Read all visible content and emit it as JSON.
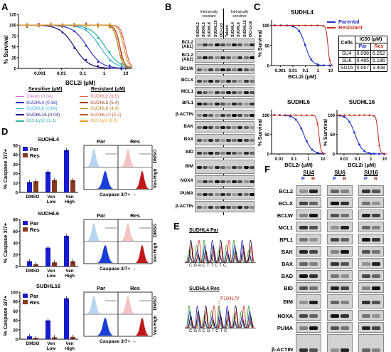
{
  "panel_labels": {
    "A": "A",
    "B": "B",
    "C": "C",
    "D": "D",
    "E": "E",
    "F": "F"
  },
  "panelA": {
    "ylabel": "% Survival",
    "xlabel": "BCL2i (μM)",
    "yticks": [
      "0",
      "25",
      "50",
      "75",
      "100",
      "125"
    ],
    "xticks": [
      "0.001",
      "0.01",
      "0.1",
      "1",
      "10"
    ],
    "legend_sens_title": "Sensitive (μM)",
    "legend_res_title": "Resistant (μM)",
    "sensitive": [
      {
        "name": "Toledo (0.04)",
        "color": "#d070d0"
      },
      {
        "name": "SUDHL4 (0.16)",
        "color": "#3030c0"
      },
      {
        "name": "SUDHL6 (0.64)",
        "color": "#40b0e0"
      },
      {
        "name": "SUDHL16 (0.04)",
        "color": "#1a1a80"
      },
      {
        "name": "OCI-Ly10 (1.1)",
        "color": "#30b0a0"
      }
    ],
    "resistant": [
      {
        "name": "SUDHL2 (9.5)",
        "color": "#e06060"
      },
      {
        "name": "SUDHL5 (5.4)",
        "color": "#a04020"
      },
      {
        "name": "SUDHL8 (4.4)",
        "color": "#b08020"
      },
      {
        "name": "SUDHL10 (5.2)",
        "color": "#c06030"
      },
      {
        "name": "OCI-Ly3 (8.0)",
        "color": "#e0a030"
      }
    ]
  },
  "panelB": {
    "group_left": "Intrinsically\nresistant",
    "group_right": "Intrinsically\nsensitive",
    "lanes": [
      "SUDHL2",
      "SUDHL5",
      "SUDHL8",
      "SUDHL10",
      "OCI-Ly3",
      "Toledo",
      "SUDHL4",
      "SUDHL6",
      "SUDHL16",
      "OCI-Ly10"
    ],
    "rows": [
      "BCL2\n(Ab1)",
      "BCL2\n(Ab2)",
      "BCLW",
      "BCLX",
      "MCL1",
      "BFL1",
      "β-ACTIN",
      "BAK",
      "BAX",
      "BID",
      "BIM",
      "NOXA",
      "PUMA",
      "β-ACTIN"
    ]
  },
  "panelC": {
    "legend": [
      {
        "name": "Parental",
        "color": "#2030d0"
      },
      {
        "name": "Resistant",
        "color": "#c03020"
      }
    ],
    "ylabel": "% Survival",
    "xlabel": "BCL2i (μM)",
    "plots": [
      {
        "title": "SUDHL4",
        "xticks": [
          "0.001",
          "0.01",
          "0.1",
          "1",
          "10"
        ]
      },
      {
        "title": "SUDHL6",
        "xticks": [
          "0.01",
          "0.1",
          "1",
          "10"
        ]
      },
      {
        "title": "SUDHL16",
        "xticks": [
          "0.01",
          "0.1",
          "1",
          "10"
        ]
      }
    ],
    "yticks": [
      "0",
      "50",
      "100"
    ],
    "ic50_table": {
      "title": "IC50 (μM)",
      "head": [
        "Cells",
        "Par",
        "Res"
      ],
      "rows": [
        [
          "SU4",
          "0.098",
          "6.252"
        ],
        [
          "SU6",
          "0.485",
          "5.186"
        ],
        [
          "SU16",
          "0.067",
          "3.408"
        ]
      ]
    }
  },
  "panelD": {
    "ylabel": "% Caspase 3/7+",
    "categories": [
      "DMSO",
      "Ven\nLow",
      "Ven\nHigh"
    ],
    "legend": [
      {
        "name": "Par",
        "color": "#1a1ad0"
      },
      {
        "name": "Res",
        "color": "#8a3a20"
      }
    ],
    "flow_par": "Par",
    "flow_res": "Res",
    "flow_xlabel": "Caspase 3/7+ →",
    "flow_dmso": "DMSO",
    "flow_venhigh": "Ven High",
    "plots": [
      {
        "title": "SUDHL4",
        "ylim": [
          0,
          50
        ],
        "yticks": [
          "0",
          "10",
          "20",
          "30",
          "40",
          "50"
        ],
        "par": [
          11,
          22,
          45
        ],
        "res": [
          12,
          13,
          13
        ]
      },
      {
        "title": "SUDHL6",
        "ylim": [
          0,
          80
        ],
        "yticks": [
          "0",
          "20",
          "40",
          "60",
          "80"
        ],
        "par": [
          9,
          32,
          52
        ],
        "res": [
          4,
          7,
          9
        ]
      },
      {
        "title": "SUDHL16",
        "ylim": [
          0,
          100
        ],
        "yticks": [
          "0",
          "20",
          "40",
          "60",
          "80",
          "100"
        ],
        "par": [
          6,
          40,
          87
        ],
        "res": [
          3,
          4,
          5
        ]
      }
    ]
  },
  "panelE": {
    "title_par": "SUDHL4 Par",
    "title_res": "SUDHL4 Res",
    "seq_par": "C G A C T T C T C",
    "seq_res": "C G A C G T C T C",
    "mutation": "F104L/V"
  },
  "panelF": {
    "groups": [
      "SU4",
      "SU6",
      "SU16"
    ],
    "lane_p": "P",
    "lane_r": "R",
    "rows": [
      "BCL2",
      "BCLX",
      "BCLW",
      "MCL1",
      "BFL1",
      "BAK",
      "BAX",
      "BAD",
      "BID",
      "BIM",
      "NOXA",
      "PUMA",
      "β-ACTIN"
    ]
  }
}
